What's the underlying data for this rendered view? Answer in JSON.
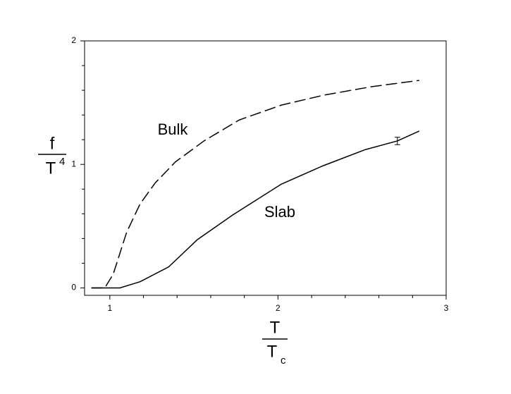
{
  "chart_data": {
    "type": "line",
    "xlabel": {
      "numerator": "T",
      "denominator": "T",
      "denominator_sub": "c"
    },
    "ylabel": {
      "numerator": "f",
      "denominator": "T",
      "denominator_sup": "4"
    },
    "xlim": [
      0.85,
      3
    ],
    "xticks": [
      1,
      2,
      3
    ],
    "xticks_minor": [
      1.2,
      1.4,
      1.6,
      1.8,
      2.2,
      2.4,
      2.6,
      2.8
    ],
    "ylim": [
      -0.06,
      2
    ],
    "yticks": [
      0,
      1,
      2
    ],
    "yticks_minor": [
      0.2,
      0.4,
      0.6,
      0.8,
      1.2,
      1.4,
      1.6,
      1.8
    ],
    "grid": false,
    "series": [
      {
        "name": "Bulk",
        "color": "#000000",
        "dashed": true,
        "x": [
          0.89,
          0.97,
          1.02,
          1.1,
          1.18,
          1.27,
          1.39,
          1.56,
          1.77,
          2.02,
          2.27,
          2.56,
          2.84
        ],
        "values": [
          0,
          0,
          0.11,
          0.45,
          0.68,
          0.85,
          1.02,
          1.19,
          1.36,
          1.48,
          1.56,
          1.63,
          1.68
        ]
      },
      {
        "name": "Slab",
        "color": "#000000",
        "dashed": false,
        "x": [
          0.89,
          1.06,
          1.18,
          1.35,
          1.52,
          1.73,
          2.02,
          2.27,
          2.52,
          2.71,
          2.84
        ],
        "values": [
          0,
          0,
          0.05,
          0.17,
          0.39,
          0.59,
          0.84,
          0.99,
          1.12,
          1.19,
          1.27
        ],
        "error_bar": {
          "x": 2.71,
          "value": 1.19,
          "error": 0.03
        }
      }
    ]
  }
}
